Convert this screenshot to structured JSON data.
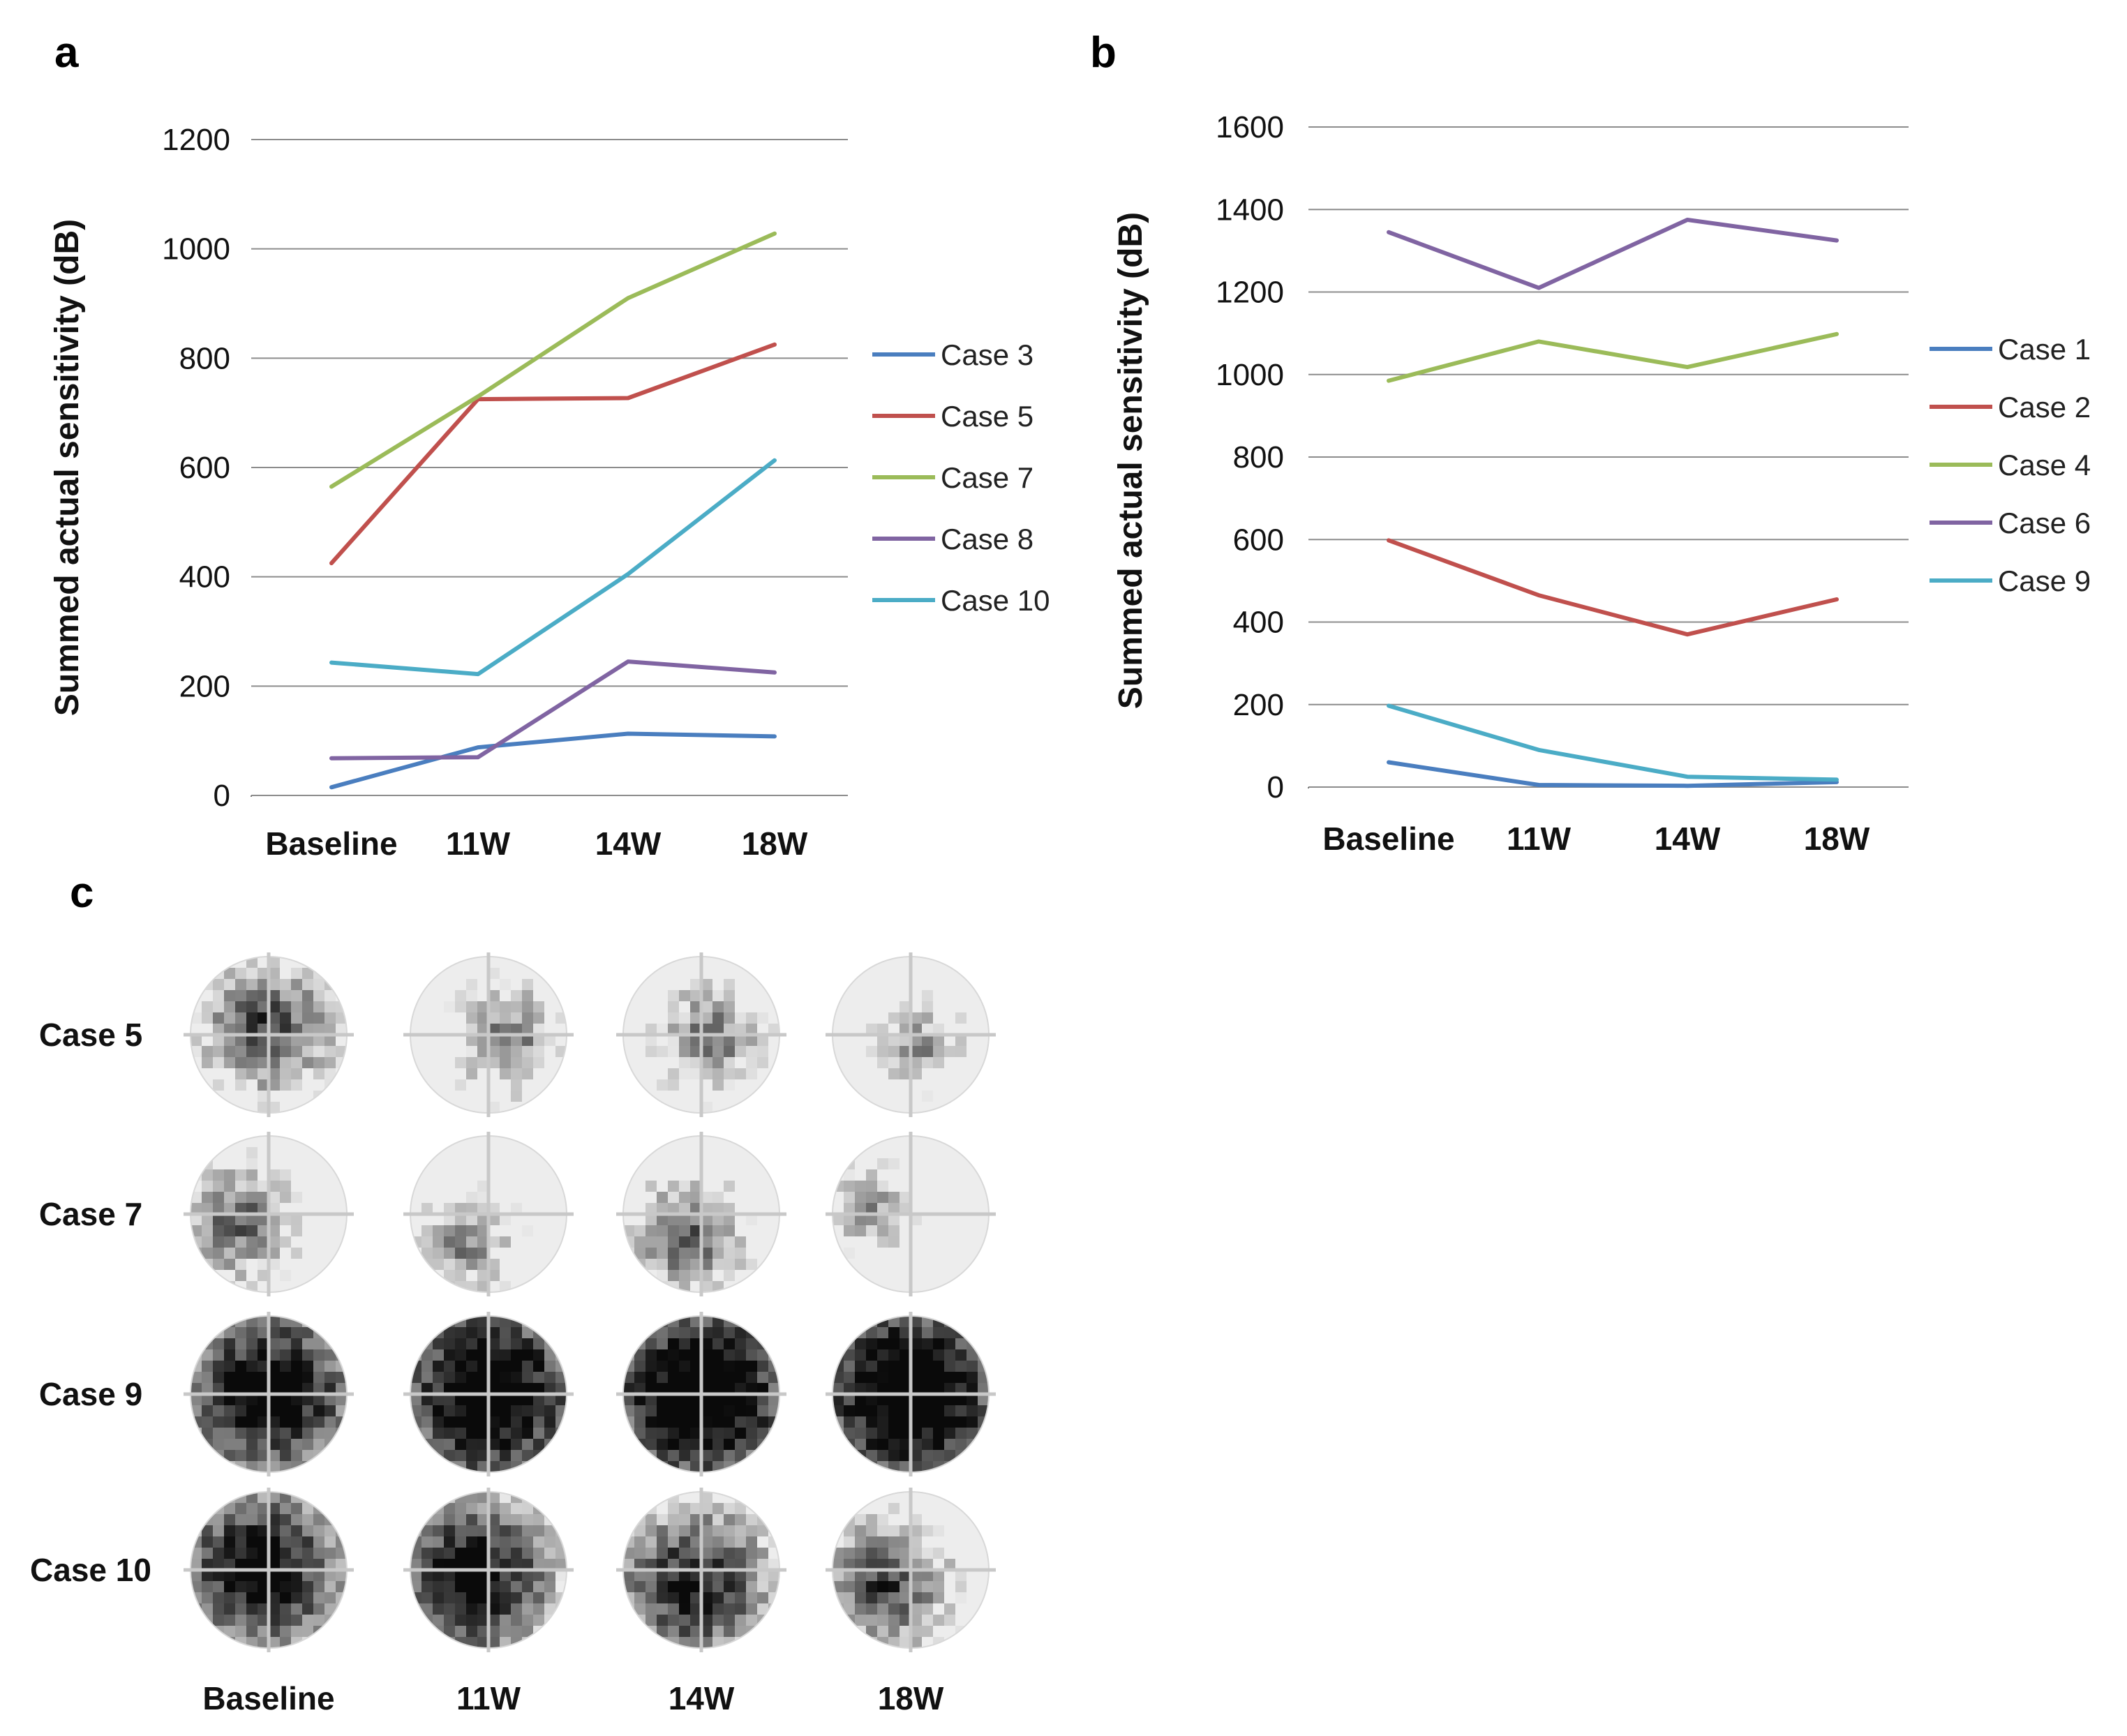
{
  "chart_data": [
    {
      "panel": "a",
      "type": "line",
      "title": "",
      "xlabel": "",
      "ylabel": "Summed  actual sensitivity (dB)",
      "categories": [
        "Baseline",
        "11W",
        "14W",
        "18W"
      ],
      "ylim": [
        0,
        1200
      ],
      "yticks": [
        0,
        200,
        400,
        600,
        800,
        1000,
        1200
      ],
      "grid": true,
      "legend": "right",
      "series": [
        {
          "name": "Case 3",
          "color": "#4a7ebf",
          "values": [
            15,
            88,
            113,
            108
          ]
        },
        {
          "name": "Case 5",
          "color": "#c0504d",
          "values": [
            425,
            725,
            727,
            825
          ]
        },
        {
          "name": "Case 7",
          "color": "#9bbb59",
          "values": [
            565,
            730,
            910,
            1028
          ]
        },
        {
          "name": "Case 8",
          "color": "#8064a2",
          "values": [
            68,
            70,
            245,
            225
          ]
        },
        {
          "name": "Case 10",
          "color": "#4bacc6",
          "values": [
            243,
            222,
            405,
            613
          ]
        }
      ]
    },
    {
      "panel": "b",
      "type": "line",
      "title": "",
      "xlabel": "",
      "ylabel": "Summed  actual sensitivity (dB)",
      "categories": [
        "Baseline",
        "11W",
        "14W",
        "18W"
      ],
      "ylim": [
        0,
        1600
      ],
      "yticks": [
        0,
        200,
        400,
        600,
        800,
        1000,
        1200,
        1400,
        1600
      ],
      "grid": true,
      "legend": "right",
      "series": [
        {
          "name": "Case 1",
          "color": "#4a7ebf",
          "values": [
            60,
            5,
            3,
            12
          ]
        },
        {
          "name": "Case 2",
          "color": "#c0504d",
          "values": [
            598,
            465,
            370,
            455
          ]
        },
        {
          "name": "Case 4",
          "color": "#9bbb59",
          "values": [
            985,
            1080,
            1018,
            1098
          ]
        },
        {
          "name": "Case 6",
          "color": "#8064a2",
          "values": [
            1345,
            1210,
            1375,
            1325
          ]
        },
        {
          "name": "Case 9",
          "color": "#4bacc6",
          "values": [
            197,
            90,
            25,
            18
          ]
        }
      ]
    }
  ],
  "panel_c": {
    "label": "c",
    "rows": [
      "Case 5",
      "Case 7",
      "Case 9",
      "Case 10"
    ],
    "columns": [
      "Baseline",
      "11W",
      "14W",
      "18W"
    ]
  },
  "colors": {
    "grid": "#8c8c8c",
    "axis": "#7a7a7a",
    "map_dark": "#0b0b0b",
    "map_light": "#ededed"
  }
}
